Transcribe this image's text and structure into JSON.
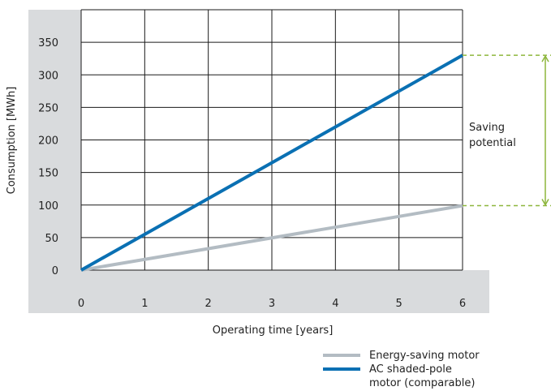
{
  "chart_data": {
    "type": "line",
    "xlabel": "Operating time [years]",
    "ylabel": "Consumption [MWh]",
    "x": [
      0,
      1,
      2,
      3,
      4,
      5,
      6
    ],
    "xlim": [
      0,
      6
    ],
    "ylim": [
      0,
      400
    ],
    "xticks": [
      "0",
      "1",
      "2",
      "3",
      "4",
      "5",
      "6"
    ],
    "yticks": [
      "0",
      "50",
      "100",
      "150",
      "200",
      "250",
      "300",
      "350"
    ],
    "grid": true,
    "series": [
      {
        "name": "Energy-saving motor",
        "color": "#b3bcc3",
        "values": [
          0,
          16.5,
          33,
          49.5,
          66,
          82.5,
          99
        ]
      },
      {
        "name": "AC shaded-pole motor (comparable)",
        "name_lines": [
          "AC shaded-pole",
          "motor (comparable)"
        ],
        "color": "#0a70b3",
        "values": [
          0,
          55,
          110,
          165,
          220,
          275,
          330
        ]
      }
    ],
    "annotation": {
      "lines": [
        "Saving",
        "potential"
      ],
      "color": "#8db63c",
      "from": 99,
      "to": 330
    },
    "legend": "bottom-right",
    "axis_band_color": "#d9dbdd"
  }
}
